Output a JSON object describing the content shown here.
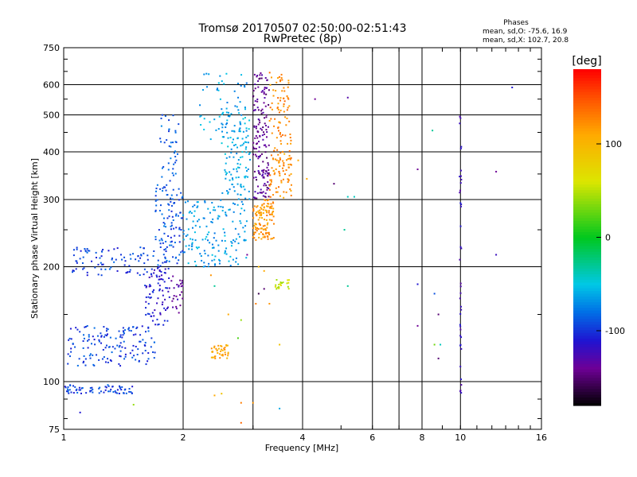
{
  "chart_data": {
    "type": "scatter",
    "title": "Tromsø 20170507 02:50:00-02:51:43",
    "subtitle": "RwPretec (8p)",
    "xlabel": "Frequency [MHz]",
    "ylabel": "Stationary phase Virtual Height [km]",
    "x_scale": "log",
    "y_scale": "log",
    "xlim": [
      1,
      16
    ],
    "ylim": [
      75,
      750
    ],
    "x_ticks": [
      1,
      2,
      4,
      6,
      8,
      10,
      16
    ],
    "y_ticks": [
      75,
      100,
      200,
      300,
      400,
      500,
      600,
      750
    ],
    "x_grid": [
      1,
      2,
      3,
      4,
      6,
      7,
      8,
      10,
      16
    ],
    "y_grid": [
      100,
      200,
      300,
      400,
      500,
      600
    ],
    "phase_stats": {
      "heading": "Phases",
      "o_line": "mean, sd,O: -75.6, 16.9",
      "x_line": "mean, sd,X: 102.7, 20.8"
    },
    "colorbar": {
      "unit": "[deg]",
      "range": [
        -180,
        180
      ],
      "ticks": [
        100,
        0,
        -100
      ]
    },
    "series_clusters": [
      {
        "x": [
          1.0,
          1.5
        ],
        "h": [
          93,
          98
        ],
        "phase": -95,
        "n": 70
      },
      {
        "x": [
          1.02,
          1.7
        ],
        "h": [
          110,
          140
        ],
        "phase": -95,
        "n": 150
      },
      {
        "x": [
          1.6,
          1.85
        ],
        "h": [
          140,
          200
        ],
        "phase": -110,
        "n": 80
      },
      {
        "x": [
          1.05,
          1.7
        ],
        "h": [
          190,
          225
        ],
        "phase": -95,
        "n": 90
      },
      {
        "x": [
          1.7,
          2.0
        ],
        "h": [
          200,
          330
        ],
        "phase": -90,
        "n": 110
      },
      {
        "x": [
          1.75,
          1.95
        ],
        "h": [
          330,
          500
        ],
        "phase": -85,
        "n": 40
      },
      {
        "x": [
          1.85,
          2.0
        ],
        "h": [
          150,
          190
        ],
        "phase": -135,
        "n": 25
      },
      {
        "x": [
          2.0,
          2.9
        ],
        "h": [
          200,
          300
        ],
        "phase": -65,
        "n": 160
      },
      {
        "x": [
          2.5,
          2.95
        ],
        "h": [
          300,
          520
        ],
        "phase": -60,
        "n": 120
      },
      {
        "x": [
          2.2,
          2.9
        ],
        "h": [
          430,
          650
        ],
        "phase": -65,
        "n": 50
      },
      {
        "x": [
          3.0,
          3.3
        ],
        "h": [
          300,
          650
        ],
        "phase": -140,
        "n": 160
      },
      {
        "x": [
          3.0,
          3.4
        ],
        "h": [
          235,
          300
        ],
        "phase": 120,
        "n": 120
      },
      {
        "x": [
          3.3,
          3.75
        ],
        "h": [
          300,
          650
        ],
        "phase": 125,
        "n": 150
      },
      {
        "x": [
          2.35,
          2.6
        ],
        "h": [
          115,
          125
        ],
        "phase": 110,
        "n": 40
      },
      {
        "x": [
          3.4,
          3.7
        ],
        "h": [
          175,
          185
        ],
        "phase": 55,
        "n": 20
      },
      {
        "x": [
          9.95,
          10.05
        ],
        "h": [
          85,
          520
        ],
        "phase": -120,
        "n": 40
      }
    ],
    "scattered_points": [
      {
        "x": 4.3,
        "h": 550,
        "phase": -140
      },
      {
        "x": 5.2,
        "h": 555,
        "phase": -130
      },
      {
        "x": 4.8,
        "h": 330,
        "phase": -150
      },
      {
        "x": 5.2,
        "h": 305,
        "phase": -40
      },
      {
        "x": 5.4,
        "h": 305,
        "phase": -40
      },
      {
        "x": 7.8,
        "h": 360,
        "phase": -140
      },
      {
        "x": 7.8,
        "h": 180,
        "phase": -110
      },
      {
        "x": 7.8,
        "h": 140,
        "phase": -140
      },
      {
        "x": 8.5,
        "h": 455,
        "phase": -30
      },
      {
        "x": 8.6,
        "h": 170,
        "phase": -90
      },
      {
        "x": 8.8,
        "h": 150,
        "phase": -150
      },
      {
        "x": 8.8,
        "h": 115,
        "phase": -150
      },
      {
        "x": 8.6,
        "h": 125,
        "phase": 30
      },
      {
        "x": 8.9,
        "h": 125,
        "phase": -40
      },
      {
        "x": 12.3,
        "h": 355,
        "phase": -140
      },
      {
        "x": 12.3,
        "h": 215,
        "phase": -120
      },
      {
        "x": 13.5,
        "h": 590,
        "phase": -110
      },
      {
        "x": 5.1,
        "h": 250,
        "phase": -30
      },
      {
        "x": 5.2,
        "h": 178,
        "phase": -30
      },
      {
        "x": 3.6,
        "h": 395,
        "phase": 100
      },
      {
        "x": 3.9,
        "h": 380,
        "phase": 110
      },
      {
        "x": 4.1,
        "h": 340,
        "phase": 110
      },
      {
        "x": 2.4,
        "h": 92,
        "phase": 110
      },
      {
        "x": 2.5,
        "h": 93,
        "phase": 90
      },
      {
        "x": 2.8,
        "h": 78,
        "phase": 140
      },
      {
        "x": 2.8,
        "h": 88,
        "phase": 130
      },
      {
        "x": 3.0,
        "h": 88,
        "phase": 120
      },
      {
        "x": 3.5,
        "h": 85,
        "phase": -60
      },
      {
        "x": 1.5,
        "h": 87,
        "phase": 40
      },
      {
        "x": 1.1,
        "h": 83,
        "phase": -110
      },
      {
        "x": 2.35,
        "h": 190,
        "phase": 120
      },
      {
        "x": 2.4,
        "h": 178,
        "phase": -30
      },
      {
        "x": 2.6,
        "h": 150,
        "phase": 110
      },
      {
        "x": 2.75,
        "h": 130,
        "phase": 20
      },
      {
        "x": 2.8,
        "h": 145,
        "phase": 40
      },
      {
        "x": 2.9,
        "h": 215,
        "phase": -140
      },
      {
        "x": 3.1,
        "h": 170,
        "phase": -160
      },
      {
        "x": 3.2,
        "h": 175,
        "phase": -150
      },
      {
        "x": 3.3,
        "h": 160,
        "phase": 120
      },
      {
        "x": 3.05,
        "h": 160,
        "phase": 130
      },
      {
        "x": 3.5,
        "h": 125,
        "phase": 90
      },
      {
        "x": 3.2,
        "h": 195,
        "phase": 110
      },
      {
        "x": 3.1,
        "h": 200,
        "phase": 100
      }
    ]
  }
}
